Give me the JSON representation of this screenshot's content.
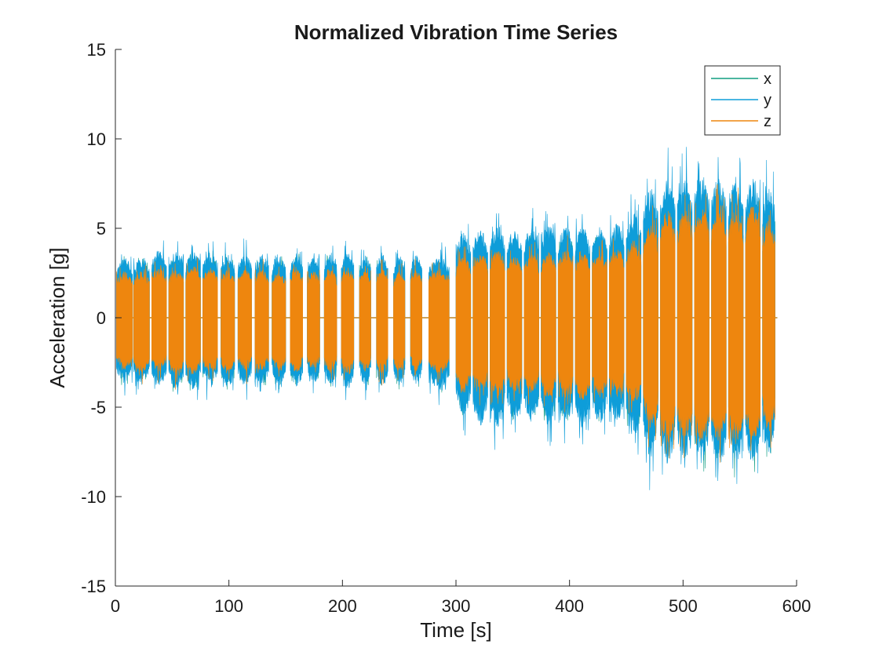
{
  "chart_data": {
    "type": "line",
    "title": "Normalized Vibration Time Series",
    "xlabel": "Time [s]",
    "ylabel": "Acceleration [g]",
    "xlim": [
      0,
      600
    ],
    "ylim": [
      -15,
      15
    ],
    "xticks": [
      0,
      100,
      200,
      300,
      400,
      500,
      600
    ],
    "yticks": [
      -15,
      -10,
      -5,
      0,
      5,
      10,
      15
    ],
    "grid": false,
    "legend_position": "top-right",
    "description": "Three-axis acceleration signal recorded in repeated bursts of roughly 15 s; values below are the approximate upper/lower envelope of each series per burst.",
    "bursts": {
      "x_start": [
        1,
        16,
        32,
        47,
        62,
        77,
        93,
        108,
        123,
        138,
        154,
        169,
        184,
        199,
        215,
        230,
        245,
        260,
        276,
        300,
        315,
        330,
        345,
        360,
        375,
        390,
        405,
        420,
        435,
        450,
        465,
        480,
        495,
        510,
        525,
        540,
        555,
        570
      ],
      "x_end": [
        15,
        30,
        45,
        60,
        75,
        90,
        105,
        120,
        135,
        150,
        165,
        180,
        195,
        210,
        225,
        240,
        255,
        270,
        294,
        313,
        328,
        343,
        358,
        373,
        388,
        403,
        418,
        433,
        448,
        463,
        478,
        493,
        508,
        523,
        538,
        553,
        568,
        581
      ]
    },
    "series": [
      {
        "name": "x",
        "color": "#119E81",
        "upper": [
          2.6,
          2.6,
          2.9,
          2.8,
          3.0,
          2.9,
          2.8,
          2.8,
          2.8,
          2.7,
          2.8,
          2.6,
          2.8,
          2.9,
          2.7,
          2.8,
          2.7,
          2.8,
          2.8,
          3.4,
          3.6,
          3.6,
          3.4,
          3.5,
          3.6,
          3.7,
          3.6,
          3.6,
          3.8,
          4.0,
          4.8,
          5.5,
          5.4,
          5.6,
          5.6,
          5.5,
          5.6,
          5.0
        ],
        "lower": [
          -2.9,
          -3.0,
          -3.0,
          -3.2,
          -3.2,
          -3.1,
          -3.1,
          -3.0,
          -3.0,
          -3.0,
          -3.1,
          -2.9,
          -3.0,
          -3.2,
          -3.0,
          -3.1,
          -3.0,
          -3.0,
          -3.2,
          -4.3,
          -4.5,
          -4.8,
          -4.5,
          -4.6,
          -4.8,
          -4.6,
          -4.9,
          -4.8,
          -4.7,
          -5.3,
          -6.2,
          -6.8,
          -6.6,
          -6.7,
          -6.9,
          -6.9,
          -6.8,
          -6.3
        ]
      },
      {
        "name": "y",
        "color": "#0E9DD9",
        "upper": [
          3.1,
          3.1,
          3.5,
          3.4,
          3.5,
          3.4,
          3.3,
          3.3,
          3.3,
          3.2,
          3.3,
          3.1,
          3.3,
          3.4,
          3.2,
          3.3,
          3.2,
          3.3,
          3.3,
          4.4,
          4.6,
          4.8,
          4.6,
          4.7,
          4.8,
          4.8,
          4.8,
          4.7,
          4.9,
          5.4,
          6.7,
          7.3,
          7.2,
          7.4,
          7.3,
          7.2,
          7.3,
          6.8
        ],
        "lower": [
          -3.4,
          -3.5,
          -3.6,
          -3.7,
          -3.7,
          -3.6,
          -3.6,
          -3.5,
          -3.5,
          -3.5,
          -3.6,
          -3.4,
          -3.5,
          -3.7,
          -3.5,
          -3.6,
          -3.5,
          -3.5,
          -3.7,
          -5.0,
          -5.6,
          -5.7,
          -5.3,
          -5.4,
          -5.6,
          -5.4,
          -5.7,
          -5.5,
          -5.4,
          -6.2,
          -7.2,
          -7.6,
          -7.4,
          -7.5,
          -7.7,
          -7.6,
          -7.5,
          -7.1
        ]
      },
      {
        "name": "z",
        "color": "#EE860E",
        "upper": [
          2.4,
          2.4,
          2.6,
          2.5,
          2.7,
          2.6,
          2.5,
          2.5,
          2.5,
          2.4,
          2.5,
          2.4,
          2.5,
          2.6,
          2.4,
          2.5,
          2.4,
          2.5,
          2.5,
          3.2,
          3.4,
          3.5,
          3.2,
          3.3,
          3.4,
          3.5,
          3.4,
          3.4,
          3.6,
          3.9,
          4.8,
          5.6,
          5.6,
          5.8,
          5.6,
          5.6,
          5.8,
          5.1
        ],
        "lower": [
          -2.7,
          -2.8,
          -2.8,
          -3.0,
          -3.0,
          -2.9,
          -2.9,
          -2.8,
          -2.8,
          -2.8,
          -2.9,
          -2.7,
          -2.8,
          -3.0,
          -2.8,
          -2.9,
          -2.8,
          -2.8,
          -3.0,
          -3.9,
          -3.8,
          -4.2,
          -3.9,
          -4.0,
          -4.2,
          -4.0,
          -4.3,
          -4.2,
          -4.1,
          -4.5,
          -5.6,
          -6.5,
          -6.3,
          -6.4,
          -6.6,
          -6.6,
          -6.5,
          -5.9
        ]
      }
    ]
  }
}
